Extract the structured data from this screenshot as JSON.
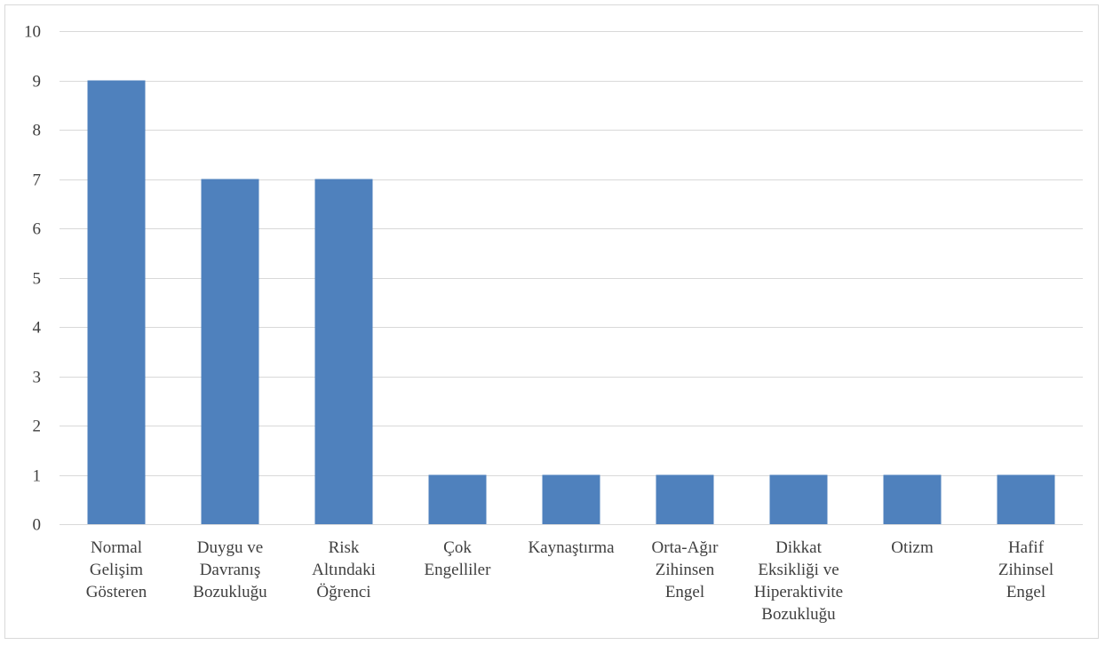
{
  "chart_data": {
    "type": "bar",
    "categories": [
      [
        "Normal",
        "Gelişim",
        "Gösteren"
      ],
      [
        "Duygu ve",
        "Davranış",
        "Bozukluğu"
      ],
      [
        "Risk",
        "Altındaki",
        "Öğrenci"
      ],
      [
        "Çok",
        "Engelliler"
      ],
      [
        "Kaynaştırma"
      ],
      [
        "Orta-Ağır",
        "Zihinsen",
        "Engel"
      ],
      [
        "Dikkat",
        "Eksikliği ve",
        "Hiperaktivite",
        "Bozukluğu"
      ],
      [
        "Otizm"
      ],
      [
        "Hafif",
        "Zihinsel",
        "Engel"
      ]
    ],
    "values": [
      9,
      7,
      7,
      1,
      1,
      1,
      1,
      1,
      1
    ],
    "title": "",
    "xlabel": "",
    "ylabel": "",
    "ylim": [
      0,
      10
    ],
    "yticks": [
      0,
      1,
      2,
      3,
      4,
      5,
      6,
      7,
      8,
      9,
      10
    ],
    "grid": true,
    "legend": "none",
    "bar_color": "#4f81bd"
  }
}
